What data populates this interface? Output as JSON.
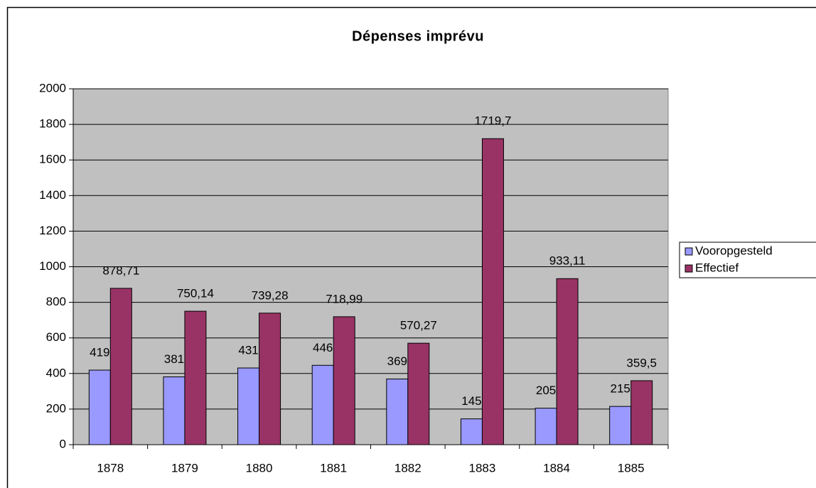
{
  "chart_data": {
    "type": "bar",
    "title": "Dépenses imprévu",
    "categories": [
      "1878",
      "1879",
      "1880",
      "1881",
      "1882",
      "1883",
      "1884",
      "1885"
    ],
    "series": [
      {
        "name": "Vooropgesteld",
        "color": "#9999ff",
        "values": [
          419,
          381,
          431,
          446,
          369,
          145,
          205,
          215
        ]
      },
      {
        "name": "Effectief",
        "color": "#993366",
        "values": [
          878.71,
          750.14,
          739.28,
          718.99,
          570.27,
          1719.7,
          933.11,
          359.5
        ],
        "value_labels": [
          "878,71",
          "750,14",
          "739,28",
          "718,99",
          "570,27",
          "1719,7",
          "933,11",
          "359,5"
        ]
      }
    ],
    "ylim": [
      0,
      2000
    ],
    "yticks": [
      0,
      200,
      400,
      600,
      800,
      1000,
      1200,
      1400,
      1600,
      1800,
      2000
    ],
    "grid": true,
    "legend": "right",
    "background": "#c0c0c0"
  }
}
